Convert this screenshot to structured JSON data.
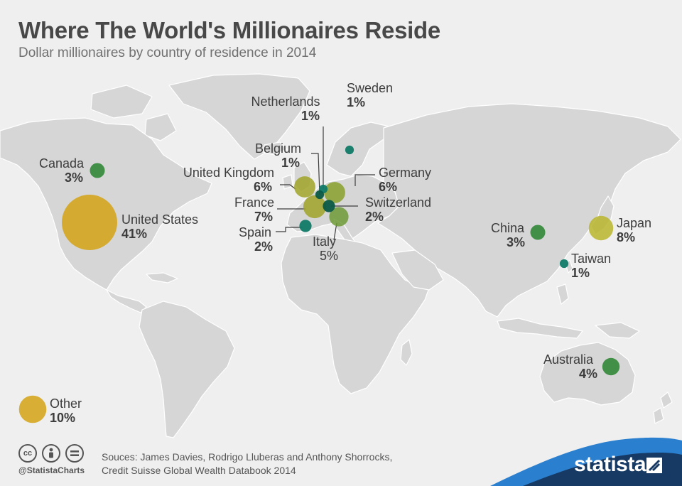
{
  "title": "Where The World's Millionaires Reside",
  "subtitle": "Dollar millionaires by country of residence in 2014",
  "colors": {
    "background": "#efefef",
    "land": "#d6d6d6",
    "land_stroke": "#ffffff",
    "gold": "#d4a214",
    "olive": "#9fa328",
    "dark_green": "#3a8c3f",
    "teal": "#117a68",
    "deep_green": "#0a5a45",
    "brand_blue": "#1f6fb5",
    "brand_navy": "#163a64"
  },
  "countries": [
    {
      "key": "us",
      "name": "United States",
      "share": "41%",
      "color": "#d4a214"
    },
    {
      "key": "japan",
      "name": "Japan",
      "share": "8%",
      "color": "#b9b52d"
    },
    {
      "key": "france",
      "name": "France",
      "share": "7%",
      "color": "#9fa328"
    },
    {
      "key": "uk",
      "name": "United Kingdom",
      "share": "6%",
      "color": "#9fa328"
    },
    {
      "key": "germany",
      "name": "Germany",
      "share": "6%",
      "color": "#8aa02d"
    },
    {
      "key": "italy",
      "name": "Italy",
      "share": "5%",
      "color": "#6f9a37"
    },
    {
      "key": "australia",
      "name": "Australia",
      "share": "4%",
      "color": "#3a8c3f"
    },
    {
      "key": "canada",
      "name": "Canada",
      "share": "3%",
      "color": "#3a8c3f"
    },
    {
      "key": "china",
      "name": "China",
      "share": "3%",
      "color": "#3a8c3f"
    },
    {
      "key": "switzerland",
      "name": "Switzerland",
      "share": "2%",
      "color": "#0a5a45"
    },
    {
      "key": "spain",
      "name": "Spain",
      "share": "2%",
      "color": "#117a68"
    },
    {
      "key": "netherlands",
      "name": "Netherlands",
      "share": "1%",
      "color": "#117a68"
    },
    {
      "key": "sweden",
      "name": "Sweden",
      "share": "1%",
      "color": "#117a68"
    },
    {
      "key": "belgium",
      "name": "Belgium",
      "share": "1%",
      "color": "#0a5a45"
    },
    {
      "key": "taiwan",
      "name": "Taiwan",
      "share": "1%",
      "color": "#117a68"
    },
    {
      "key": "other",
      "name": "Other",
      "share": "10%",
      "color": "#d4a214"
    }
  ],
  "footer": {
    "source_line1": "Souces: James Davies, Rodrigo Lluberas and Anthony Shorrocks,",
    "source_line2": "Credit Suisse Global Wealth Databook 2014",
    "handle": "@StatistaCharts",
    "brand": "statista",
    "icons": [
      "cc-icon",
      "attribution-icon",
      "no-derivatives-icon"
    ]
  }
}
